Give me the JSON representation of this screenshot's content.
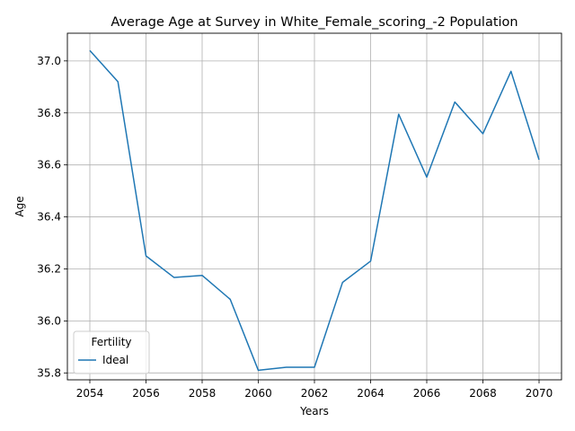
{
  "chart_data": {
    "type": "line",
    "title": "Average Age at Survey in White_Female_scoring_-2 Population",
    "xlabel": "Years",
    "ylabel": "Age",
    "x": [
      2054,
      2055,
      2056,
      2057,
      2058,
      2059,
      2060,
      2061,
      2062,
      2063,
      2064,
      2065,
      2066,
      2067,
      2068,
      2069,
      2070
    ],
    "series": [
      {
        "name": "Ideal",
        "color": "#1f77b4",
        "values": [
          37.04,
          36.92,
          36.25,
          36.167,
          36.175,
          36.083,
          35.81,
          35.822,
          35.822,
          36.148,
          36.23,
          36.795,
          36.553,
          36.842,
          36.72,
          36.96,
          36.62
        ]
      }
    ],
    "xlim": [
      2053.2,
      2070.8
    ],
    "ylim": [
      35.7735,
      37.1065
    ],
    "xticks": [
      "2054",
      "2056",
      "2058",
      "2060",
      "2062",
      "2064",
      "2066",
      "2068",
      "2070"
    ],
    "yticks": [
      "35.8",
      "36.0",
      "36.2",
      "36.4",
      "36.6",
      "36.8",
      "37.0"
    ],
    "grid": true,
    "legend": {
      "title": "Fertility",
      "position": "lower-left"
    }
  }
}
